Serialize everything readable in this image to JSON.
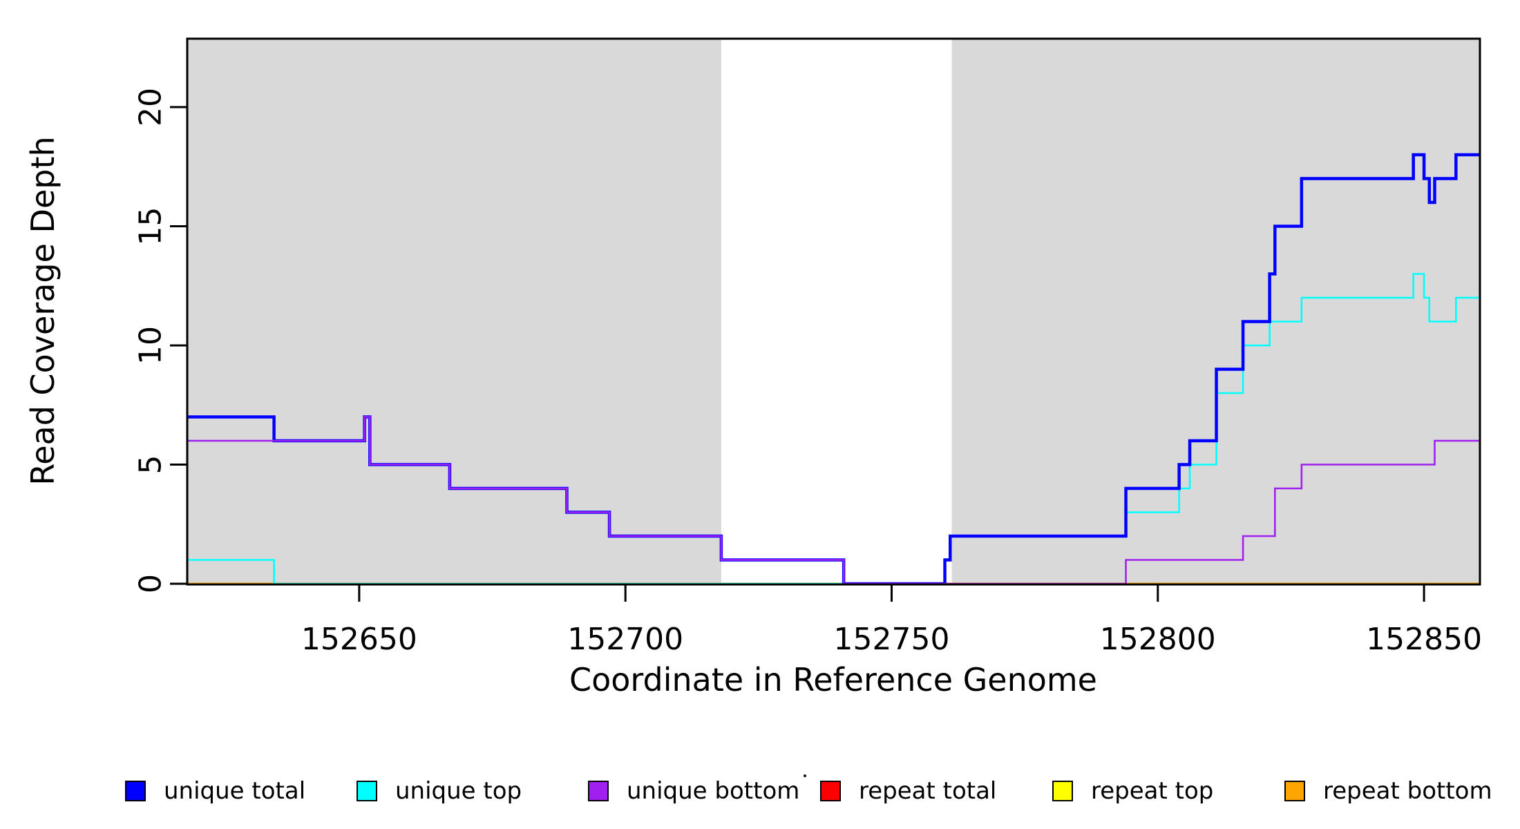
{
  "chart_data": {
    "type": "line",
    "subtype": "step",
    "title": "",
    "xlabel": "Coordinate in Reference Genome",
    "ylabel": "Read Coverage Depth",
    "xlim": [
      152617.7,
      152860.5
    ],
    "ylim": [
      0,
      22.87
    ],
    "x_ticks": [
      152650,
      152700,
      152750,
      152800,
      152850
    ],
    "y_ticks": [
      0,
      5,
      10,
      15,
      20
    ],
    "grid": false,
    "legend_position": "bottom",
    "background_color": "#ffffff",
    "shade_color": "#d9d9d9",
    "shaded_regions": [
      {
        "x0": 152617.7,
        "x1": 152718.0
      },
      {
        "x0": 152761.3,
        "x1": 152860.5
      }
    ],
    "x_end": 152860.5,
    "series": [
      {
        "name": "unique total",
        "color": "#0000ff",
        "line_width": 4.5,
        "draw": 5,
        "steps": [
          [
            152617.7,
            7
          ],
          [
            152634,
            6
          ],
          [
            152651,
            7
          ],
          [
            152652,
            5
          ],
          [
            152667,
            4
          ],
          [
            152689,
            3
          ],
          [
            152697,
            2
          ],
          [
            152718,
            1
          ],
          [
            152741,
            0
          ],
          [
            152760,
            1
          ],
          [
            152761,
            2
          ],
          [
            152794,
            4
          ],
          [
            152804,
            5
          ],
          [
            152806,
            6
          ],
          [
            152811,
            9
          ],
          [
            152816,
            11
          ],
          [
            152821,
            13
          ],
          [
            152822,
            15
          ],
          [
            152827,
            17
          ],
          [
            152848,
            18
          ],
          [
            152850,
            17
          ],
          [
            152851,
            16
          ],
          [
            152852,
            17
          ],
          [
            152856,
            18
          ]
        ]
      },
      {
        "name": "unique top",
        "color": "#00ffff",
        "line_width": 2.6,
        "draw": 4,
        "steps": [
          [
            152617.7,
            1
          ],
          [
            152634,
            0
          ],
          [
            152760,
            1
          ],
          [
            152761,
            2
          ],
          [
            152794,
            3
          ],
          [
            152804,
            4
          ],
          [
            152806,
            5
          ],
          [
            152811,
            8
          ],
          [
            152816,
            10
          ],
          [
            152821,
            11
          ],
          [
            152827,
            12
          ],
          [
            152848,
            13
          ],
          [
            152850,
            12
          ],
          [
            152851,
            11
          ],
          [
            152856,
            12
          ]
        ]
      },
      {
        "name": "unique bottom",
        "color": "#a020f0",
        "line_width": 2.6,
        "draw": 6,
        "steps": [
          [
            152617.7,
            6
          ],
          [
            152651,
            7
          ],
          [
            152652,
            5
          ],
          [
            152667,
            4
          ],
          [
            152689,
            3
          ],
          [
            152697,
            2
          ],
          [
            152718,
            1
          ],
          [
            152741,
            0
          ],
          [
            152794,
            1
          ],
          [
            152816,
            2
          ],
          [
            152822,
            4
          ],
          [
            152827,
            5
          ],
          [
            152852,
            6
          ]
        ]
      },
      {
        "name": "repeat total",
        "color": "#ff0000",
        "line_width": 2.6,
        "draw": 2,
        "steps": [
          [
            152617.7,
            0
          ]
        ]
      },
      {
        "name": "repeat top",
        "color": "#ffff00",
        "line_width": 2.6,
        "draw": 1,
        "steps": [
          [
            152617.7,
            0
          ]
        ]
      },
      {
        "name": "repeat bottom",
        "color": "#ffa500",
        "line_width": 3.2,
        "draw": 3,
        "steps": [
          [
            152617.7,
            0
          ]
        ]
      }
    ]
  },
  "legend": {
    "items": [
      {
        "label": "unique total",
        "color": "#0000ff"
      },
      {
        "label": "unique top",
        "color": "#00ffff"
      },
      {
        "label": "unique bottom",
        "color": "#a020f0"
      },
      {
        "label": "repeat total",
        "color": "#ff0000"
      },
      {
        "label": "repeat top",
        "color": "#ffff00"
      },
      {
        "label": "repeat bottom",
        "color": "#ffa500"
      }
    ]
  }
}
